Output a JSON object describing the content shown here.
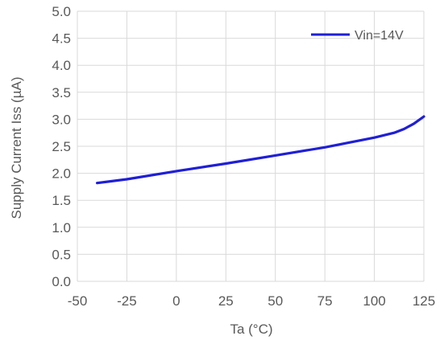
{
  "chart_data": {
    "type": "line",
    "xlabel": "Ta (°C)",
    "ylabel": "Supply Current Iss (µA)",
    "xlim": [
      -50,
      125
    ],
    "ylim": [
      0.0,
      5.0
    ],
    "x_ticks": [
      "-50",
      "-25",
      "0",
      "25",
      "50",
      "75",
      "100",
      "125"
    ],
    "y_ticks": [
      "0.0",
      "0.5",
      "1.0",
      "1.5",
      "2.0",
      "2.5",
      "3.0",
      "3.5",
      "4.0",
      "4.5",
      "5.0"
    ],
    "grid": true,
    "legend_position": "top-right",
    "series": [
      {
        "name": "Vin=14V",
        "color": "#1f1fd6",
        "x": [
          -40,
          -25,
          0,
          25,
          50,
          75,
          100,
          110,
          115,
          120,
          125
        ],
        "y": [
          1.82,
          1.89,
          2.04,
          2.18,
          2.33,
          2.48,
          2.66,
          2.75,
          2.82,
          2.92,
          3.05
        ]
      }
    ]
  }
}
